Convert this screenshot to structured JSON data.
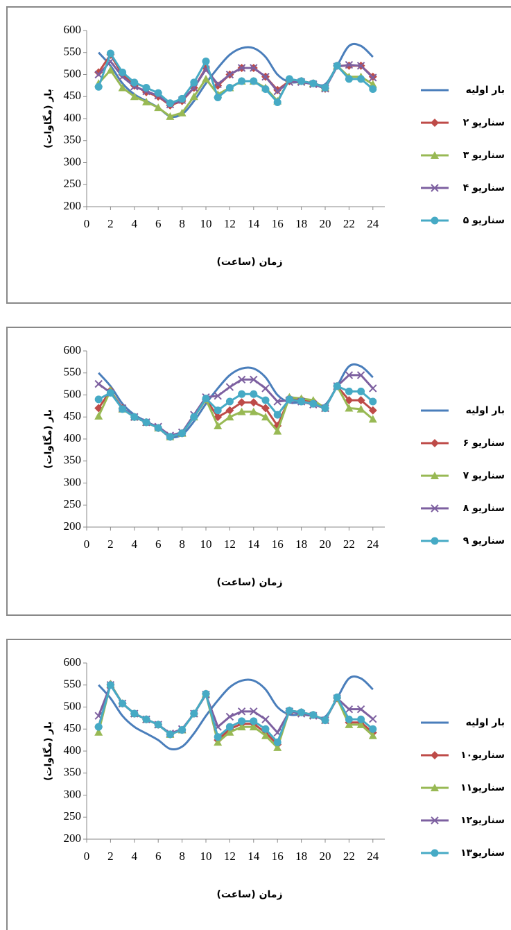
{
  "chart_data": [
    {
      "type": "line",
      "xlabel": "زمان (ساعت)",
      "ylabel": "بار (مگاوات)",
      "x": [
        1,
        2,
        3,
        4,
        5,
        6,
        7,
        8,
        9,
        10,
        11,
        12,
        13,
        14,
        15,
        16,
        17,
        18,
        19,
        20,
        21,
        22,
        23,
        24
      ],
      "xlim": [
        0,
        25
      ],
      "xticks": [
        0,
        2,
        4,
        6,
        8,
        10,
        12,
        14,
        16,
        18,
        20,
        22,
        24
      ],
      "ylim": [
        200,
        600
      ],
      "yticks": [
        200,
        250,
        300,
        350,
        400,
        450,
        500,
        550,
        600
      ],
      "legend": "right",
      "series": [
        {
          "name": "بار اولیه",
          "color": "#4a7ebb",
          "marker": "none",
          "values": [
            550,
            520,
            480,
            455,
            440,
            425,
            405,
            410,
            440,
            480,
            515,
            545,
            560,
            560,
            540,
            500,
            483,
            483,
            480,
            478,
            520,
            565,
            565,
            540
          ]
        },
        {
          "name": "سناریو ۲",
          "color": "#be4b48",
          "marker": "diamond",
          "values": [
            505,
            545,
            500,
            475,
            460,
            450,
            430,
            440,
            470,
            515,
            475,
            500,
            515,
            515,
            495,
            465,
            485,
            485,
            480,
            468,
            520,
            520,
            520,
            495
          ]
        },
        {
          "name": "سناریو ۳",
          "color": "#98b954",
          "marker": "triangle",
          "values": [
            480,
            510,
            470,
            450,
            438,
            425,
            405,
            413,
            450,
            490,
            455,
            470,
            485,
            485,
            470,
            440,
            488,
            485,
            480,
            470,
            520,
            495,
            495,
            478
          ]
        },
        {
          "name": "سناریو ۴",
          "color": "#7d60a0",
          "marker": "x",
          "values": [
            500,
            530,
            495,
            473,
            462,
            452,
            432,
            442,
            470,
            512,
            478,
            500,
            515,
            515,
            495,
            462,
            483,
            483,
            478,
            468,
            518,
            522,
            520,
            493
          ]
        },
        {
          "name": "سناریو ۵",
          "color": "#46aac5",
          "marker": "circle",
          "values": [
            472,
            548,
            505,
            482,
            470,
            458,
            435,
            445,
            482,
            530,
            448,
            470,
            485,
            485,
            467,
            437,
            490,
            485,
            480,
            470,
            520,
            490,
            490,
            467
          ]
        }
      ]
    },
    {
      "type": "line",
      "xlabel": "زمان (ساعت)",
      "ylabel": "بار (مگاوات)",
      "x": [
        1,
        2,
        3,
        4,
        5,
        6,
        7,
        8,
        9,
        10,
        11,
        12,
        13,
        14,
        15,
        16,
        17,
        18,
        19,
        20,
        21,
        22,
        23,
        24
      ],
      "xlim": [
        0,
        25
      ],
      "xticks": [
        0,
        2,
        4,
        6,
        8,
        10,
        12,
        14,
        16,
        18,
        20,
        22,
        24
      ],
      "ylim": [
        200,
        600
      ],
      "yticks": [
        200,
        250,
        300,
        350,
        400,
        450,
        500,
        550,
        600
      ],
      "legend": "right",
      "series": [
        {
          "name": "بار اولیه",
          "color": "#4a7ebb",
          "marker": "none",
          "values": [
            550,
            520,
            480,
            455,
            440,
            425,
            405,
            410,
            440,
            480,
            515,
            545,
            560,
            560,
            540,
            500,
            483,
            483,
            480,
            478,
            520,
            565,
            565,
            540
          ]
        },
        {
          "name": "سناریو ۶",
          "color": "#be4b48",
          "marker": "diamond",
          "values": [
            470,
            510,
            470,
            450,
            438,
            425,
            405,
            413,
            450,
            490,
            450,
            465,
            483,
            483,
            470,
            430,
            493,
            490,
            485,
            470,
            520,
            488,
            488,
            465
          ]
        },
        {
          "name": "سناریو ۷",
          "color": "#98b954",
          "marker": "triangle",
          "values": [
            452,
            510,
            468,
            450,
            438,
            425,
            405,
            413,
            450,
            490,
            430,
            450,
            462,
            462,
            450,
            418,
            495,
            492,
            488,
            470,
            520,
            470,
            468,
            445
          ]
        },
        {
          "name": "سناریو ۸",
          "color": "#7d60a0",
          "marker": "x",
          "values": [
            525,
            505,
            470,
            450,
            438,
            428,
            408,
            415,
            455,
            495,
            498,
            518,
            535,
            535,
            515,
            485,
            488,
            485,
            478,
            470,
            520,
            545,
            545,
            515
          ]
        },
        {
          "name": "سناریو ۹",
          "color": "#46aac5",
          "marker": "circle",
          "values": [
            490,
            505,
            468,
            450,
            438,
            425,
            405,
            413,
            450,
            492,
            465,
            485,
            502,
            502,
            488,
            455,
            490,
            485,
            480,
            470,
            520,
            508,
            508,
            485
          ]
        }
      ]
    },
    {
      "type": "line",
      "xlabel": "زمان (ساعت)",
      "ylabel": "بار (مگاوات)",
      "x": [
        1,
        2,
        3,
        4,
        5,
        6,
        7,
        8,
        9,
        10,
        11,
        12,
        13,
        14,
        15,
        16,
        17,
        18,
        19,
        20,
        21,
        22,
        23,
        24
      ],
      "xlim": [
        0,
        25
      ],
      "xticks": [
        0,
        2,
        4,
        6,
        8,
        10,
        12,
        14,
        16,
        18,
        20,
        22,
        24
      ],
      "ylim": [
        200,
        600
      ],
      "yticks": [
        200,
        250,
        300,
        350,
        400,
        450,
        500,
        550,
        600
      ],
      "legend": "right",
      "series": [
        {
          "name": "بار اولیه",
          "color": "#4a7ebb",
          "marker": "none",
          "values": [
            550,
            520,
            480,
            455,
            440,
            425,
            405,
            410,
            440,
            480,
            515,
            545,
            560,
            560,
            540,
            500,
            483,
            483,
            480,
            478,
            520,
            565,
            565,
            540
          ]
        },
        {
          "name": "سناریو۱۰",
          "color": "#be4b48",
          "marker": "diamond",
          "values": [
            455,
            552,
            508,
            485,
            472,
            460,
            438,
            448,
            485,
            530,
            425,
            450,
            462,
            462,
            442,
            415,
            492,
            488,
            482,
            470,
            520,
            465,
            465,
            442
          ]
        },
        {
          "name": "سناریو۱۱",
          "color": "#98b954",
          "marker": "triangle",
          "values": [
            443,
            552,
            508,
            485,
            472,
            460,
            438,
            448,
            485,
            530,
            420,
            443,
            455,
            455,
            435,
            408,
            492,
            488,
            482,
            470,
            520,
            460,
            460,
            435
          ]
        },
        {
          "name": "سناریو۱۲",
          "color": "#7d60a0",
          "marker": "x",
          "values": [
            480,
            550,
            508,
            485,
            472,
            460,
            440,
            450,
            485,
            528,
            455,
            478,
            490,
            490,
            472,
            442,
            490,
            485,
            480,
            470,
            520,
            495,
            495,
            473
          ]
        },
        {
          "name": "سناریو۱۳",
          "color": "#46aac5",
          "marker": "circle",
          "values": [
            455,
            550,
            508,
            485,
            472,
            460,
            438,
            448,
            485,
            530,
            432,
            455,
            468,
            468,
            450,
            420,
            492,
            488,
            482,
            470,
            522,
            472,
            472,
            450
          ]
        }
      ]
    }
  ]
}
